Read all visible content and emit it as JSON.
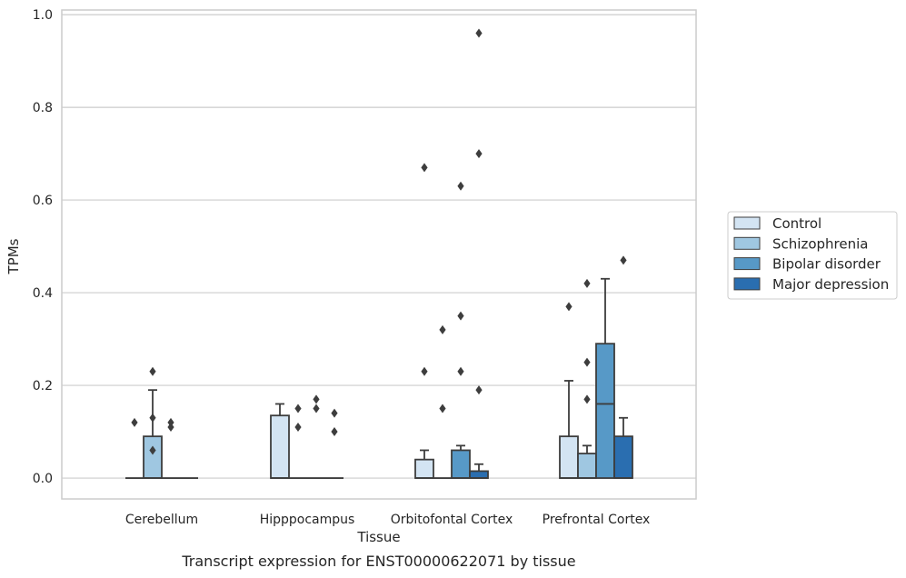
{
  "chart_data": {
    "type": "box",
    "title": "",
    "caption": "Transcript expression for ENST00000622071 by tissue",
    "xlabel": "Tissue",
    "ylabel": "TPMs",
    "ylim": [
      -0.045,
      1.01
    ],
    "yticks": [
      "0.0",
      "0.2",
      "0.4",
      "0.6",
      "0.8",
      "1.0"
    ],
    "ytick_values": [
      0.0,
      0.2,
      0.4,
      0.6,
      0.8,
      1.0
    ],
    "grid": "horizontal",
    "legend_position": "right",
    "categories": [
      "Cerebellum",
      "Hipppocampus",
      "Orbitofontal Cortex",
      "Prefrontal Cortex"
    ],
    "series": [
      {
        "name": "Control",
        "color": "#d3e4f3",
        "boxes": [
          {
            "min": 0.0,
            "q1": 0.0,
            "median": 0.0,
            "q3": 0.0,
            "max": 0.0,
            "outliers": [
              0.12
            ]
          },
          {
            "min": 0.0,
            "q1": 0.0,
            "median": 0.0,
            "q3": 0.135,
            "max": 0.16,
            "outliers": []
          },
          {
            "min": 0.0,
            "q1": 0.0,
            "median": 0.0,
            "q3": 0.04,
            "max": 0.06,
            "outliers": [
              0.23,
              0.67
            ]
          },
          {
            "min": 0.0,
            "q1": 0.0,
            "median": 0.0,
            "q3": 0.09,
            "max": 0.21,
            "outliers": [
              0.37
            ]
          }
        ]
      },
      {
        "name": "Schizophrenia",
        "color": "#9fc7e1",
        "boxes": [
          {
            "min": 0.0,
            "q1": 0.0,
            "median": 0.0,
            "q3": 0.09,
            "max": 0.19,
            "outliers": [
              0.06,
              0.13,
              0.23
            ]
          },
          {
            "min": 0.0,
            "q1": 0.0,
            "median": 0.0,
            "q3": 0.0,
            "max": 0.0,
            "outliers": [
              0.11,
              0.15
            ]
          },
          {
            "min": 0.0,
            "q1": 0.0,
            "median": 0.0,
            "q3": 0.0,
            "max": 0.0,
            "outliers": [
              0.15,
              0.32
            ]
          },
          {
            "min": 0.0,
            "q1": 0.0,
            "median": 0.0,
            "q3": 0.053,
            "max": 0.07,
            "outliers": [
              0.17,
              0.25,
              0.42
            ]
          }
        ]
      },
      {
        "name": "Bipolar disorder",
        "color": "#5799c7",
        "boxes": [
          {
            "min": 0.0,
            "q1": 0.0,
            "median": 0.0,
            "q3": 0.0,
            "max": 0.0,
            "outliers": [
              0.11,
              0.12
            ]
          },
          {
            "min": 0.0,
            "q1": 0.0,
            "median": 0.0,
            "q3": 0.0,
            "max": 0.0,
            "outliers": [
              0.15,
              0.17
            ]
          },
          {
            "min": 0.0,
            "q1": 0.0,
            "median": 0.0,
            "q3": 0.06,
            "max": 0.07,
            "outliers": [
              0.23,
              0.35,
              0.63
            ]
          },
          {
            "min": 0.0,
            "q1": 0.0,
            "median": 0.16,
            "q3": 0.29,
            "max": 0.43,
            "outliers": []
          }
        ]
      },
      {
        "name": "Major depression",
        "color": "#2a6eb0",
        "boxes": [
          {
            "min": 0.0,
            "q1": 0.0,
            "median": 0.0,
            "q3": 0.0,
            "max": 0.0,
            "outliers": []
          },
          {
            "min": 0.0,
            "q1": 0.0,
            "median": 0.0,
            "q3": 0.0,
            "max": 0.0,
            "outliers": [
              0.1,
              0.14
            ]
          },
          {
            "min": 0.0,
            "q1": 0.0,
            "median": 0.0,
            "q3": 0.015,
            "max": 0.03,
            "outliers": [
              0.19,
              0.7,
              0.96
            ]
          },
          {
            "min": 0.0,
            "q1": 0.0,
            "median": 0.0,
            "q3": 0.09,
            "max": 0.13,
            "outliers": [
              0.47
            ]
          }
        ]
      }
    ]
  }
}
